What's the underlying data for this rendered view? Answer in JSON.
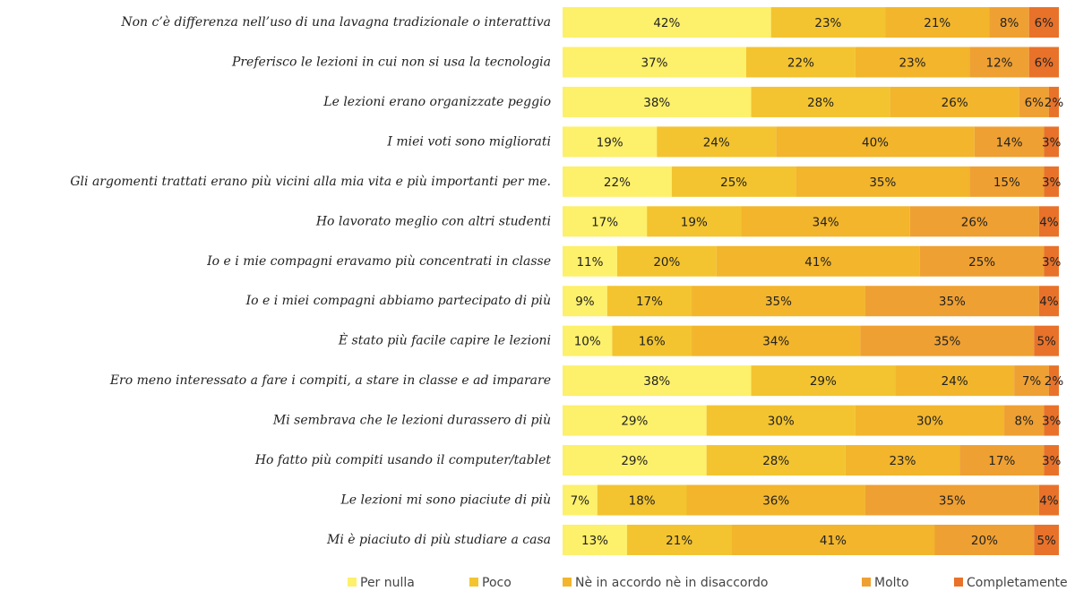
{
  "chart_data": {
    "type": "bar",
    "orientation": "horizontal",
    "stacked": true,
    "categories": [
      "Non c’è differenza nell’uso di una lavagna tradizionale o interattiva",
      "Preferisco le lezioni in cui non si usa la tecnologia",
      "Le lezioni erano organizzate peggio",
      "I miei voti sono migliorati",
      "Gli argomenti trattati erano più vicini alla mia vita e più importanti per me.",
      "Ho lavorato meglio con altri studenti",
      "Io e i mie compagni eravamo più concentrati in classe",
      "Io e i miei compagni abbiamo partecipato di più",
      "È stato più facile capire le lezioni",
      "Ero meno interessato a fare i compiti, a stare in classe e ad imparare",
      "Mi sembrava che le lezioni durassero di più",
      "Ho fatto più compiti usando il computer/tablet",
      "Le lezioni mi sono piaciute di più",
      "Mi è piaciuto di più studiare a casa"
    ],
    "series": [
      {
        "name": "Per nulla",
        "color": "#fdf06b",
        "values": [
          42,
          37,
          38,
          19,
          22,
          17,
          11,
          9,
          10,
          38,
          29,
          29,
          7,
          13
        ],
        "value_labels": [
          "42%",
          "37%",
          "38%",
          "19%",
          "22%",
          "17%",
          "11%",
          "9%",
          "10%",
          "38%",
          "29%",
          "29%",
          "7%",
          "13%"
        ]
      },
      {
        "name": "Poco",
        "color": "#f3c430",
        "values": [
          23,
          22,
          28,
          24,
          25,
          19,
          20,
          17,
          16,
          29,
          30,
          28,
          18,
          21
        ],
        "value_labels": [
          "23%",
          "22%",
          "28%",
          "24%",
          "25%",
          "19%",
          "20%",
          "17%",
          "16%",
          "29%",
          "30%",
          "28%",
          "18%",
          "21%"
        ]
      },
      {
        "name": "Nè in accordo nè in disaccordo",
        "color": "#f2b52c",
        "values": [
          21,
          23,
          26,
          40,
          35,
          34,
          41,
          35,
          34,
          24,
          30,
          23,
          36,
          41
        ],
        "value_labels": [
          "21%",
          "23%",
          "26%",
          "40%",
          "35%",
          "34%",
          "41%",
          "35%",
          "34%",
          "24%",
          "30%",
          "23%",
          "36%",
          "41%"
        ]
      },
      {
        "name": "Molto",
        "color": "#efa032",
        "values": [
          8,
          12,
          6,
          14,
          15,
          26,
          25,
          35,
          35,
          7,
          8,
          17,
          35,
          20
        ],
        "value_labels": [
          "8%",
          "12%",
          "6%",
          "14%",
          "15%",
          "26%",
          "25%",
          "35%",
          "35%",
          "7%",
          "8%",
          "17%",
          "35%",
          "20%"
        ]
      },
      {
        "name": "Completamente",
        "color": "#e8722a",
        "values": [
          6,
          6,
          2,
          3,
          3,
          4,
          3,
          4,
          5,
          2,
          3,
          3,
          4,
          5
        ],
        "value_labels": [
          "6%",
          "6%",
          "2%",
          "3%",
          "3%",
          "4%",
          "3%",
          "4%",
          "5%",
          "2%",
          "3%",
          "3%",
          "4%",
          "5%"
        ]
      }
    ],
    "xlim": [
      0,
      100
    ]
  }
}
